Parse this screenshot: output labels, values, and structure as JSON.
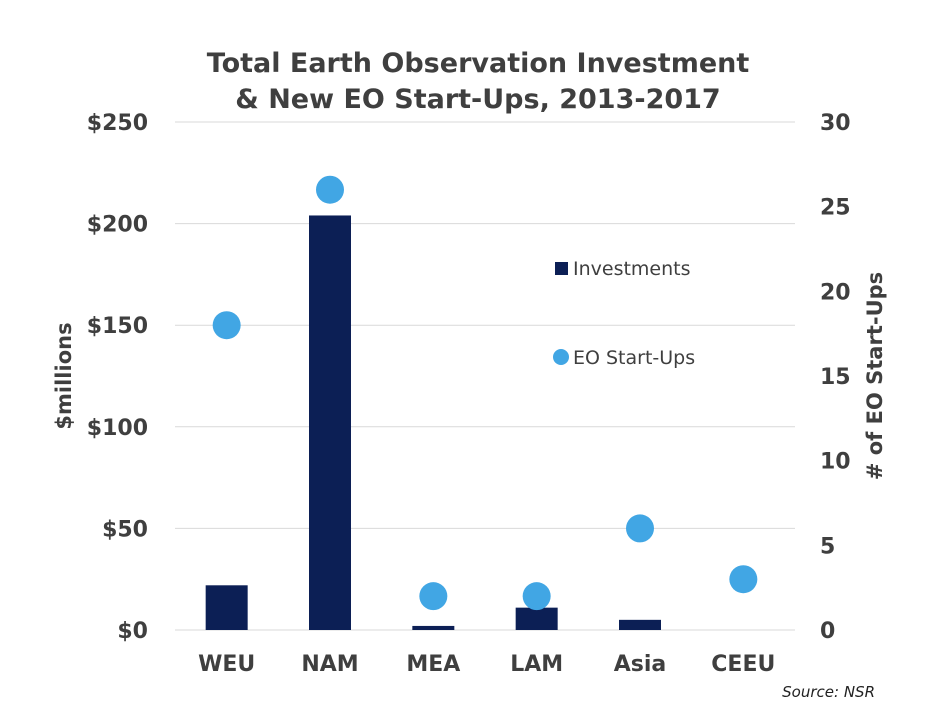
{
  "chart_data": {
    "type": "bar",
    "title_line1": "Total Earth Observation Investment",
    "title_line2": "& New EO Start-Ups, 2013-2017",
    "categories": [
      "WEU",
      "NAM",
      "MEA",
      "LAM",
      "Asia",
      "CEEU"
    ],
    "series": [
      {
        "name": "Investments",
        "kind": "bar",
        "axis": "left",
        "color": "#0c1f55",
        "values": [
          22,
          204,
          2,
          11,
          5,
          0
        ]
      },
      {
        "name": "EO Start-Ups",
        "kind": "scatter",
        "axis": "right",
        "color": "#41a6e4",
        "values": [
          18,
          26,
          2,
          2,
          6,
          3
        ]
      }
    ],
    "ylabel": "$millions",
    "y2label": "# of EO Start-Ups",
    "ylim": [
      0,
      250
    ],
    "y2lim": [
      0,
      30
    ],
    "yticks": [
      "$0",
      "$50",
      "$100",
      "$150",
      "$200",
      "$250"
    ],
    "y2ticks": [
      "0",
      "5",
      "10",
      "15",
      "20",
      "25",
      "30"
    ],
    "grid": true,
    "legend_position": "right-center",
    "source": "Source: NSR"
  }
}
